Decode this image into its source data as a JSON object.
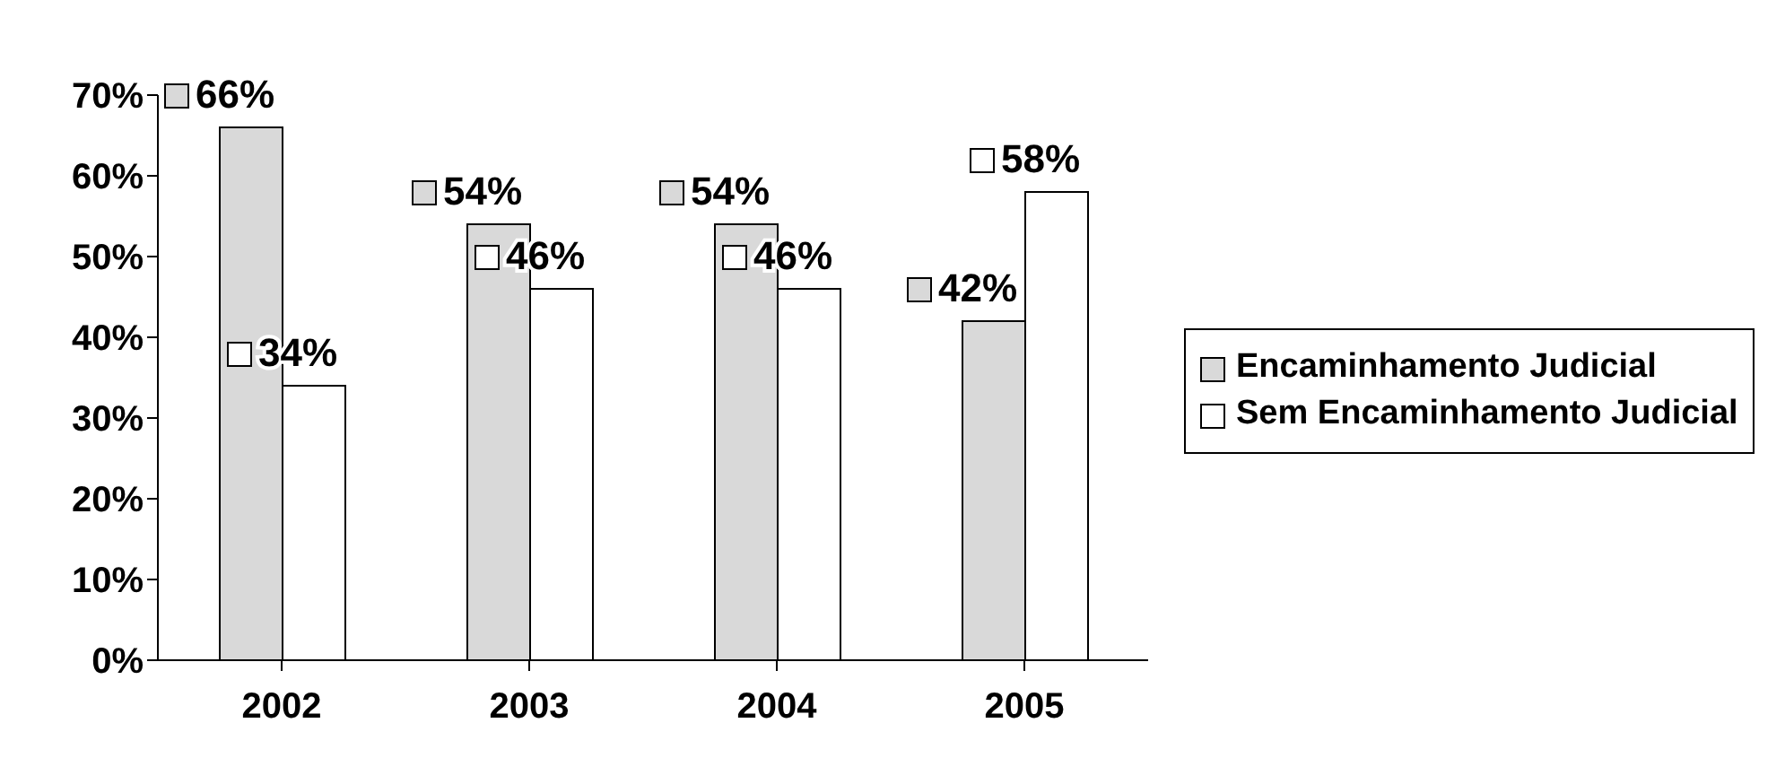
{
  "chart_data": {
    "type": "bar",
    "categories": [
      "2002",
      "2003",
      "2004",
      "2005"
    ],
    "series": [
      {
        "name": "Encaminhamento Judicial",
        "color": "#d9d9d9",
        "values": [
          66,
          54,
          54,
          42
        ],
        "value_labels": [
          "66%",
          "54%",
          "54%",
          "42%"
        ]
      },
      {
        "name": "Sem Encaminhamento Judicial",
        "color": "#ffffff",
        "values": [
          34,
          46,
          46,
          58
        ],
        "value_labels": [
          "34%",
          "46%",
          "46%",
          "58%"
        ]
      }
    ],
    "ylim": [
      0,
      70
    ],
    "yticks": [
      {
        "value": 0,
        "label": "0%"
      },
      {
        "value": 10,
        "label": "10%"
      },
      {
        "value": 20,
        "label": "20%"
      },
      {
        "value": 30,
        "label": "30%"
      },
      {
        "value": 40,
        "label": "40%"
      },
      {
        "value": 50,
        "label": "50%"
      },
      {
        "value": 60,
        "label": "60%"
      },
      {
        "value": 70,
        "label": "70%"
      }
    ],
    "grid": false,
    "legend": "right"
  }
}
